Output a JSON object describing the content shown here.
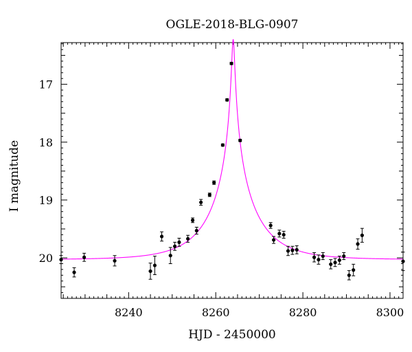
{
  "chart_data": {
    "type": "scatter",
    "title": "OGLE-2018-BLG-0907",
    "xlabel": "HJD - 2450000",
    "ylabel": "I magnitude",
    "xlim": [
      8224.5,
      8303
    ],
    "ylim": [
      20.7,
      16.28
    ],
    "y_inverted": true,
    "grid": false,
    "legend": "none",
    "x_ticks": [
      8240,
      8260,
      8280,
      8300
    ],
    "y_ticks": [
      17,
      18,
      19,
      20
    ],
    "colors": {
      "points": "#000000",
      "model": "#ff00ff"
    },
    "model": {
      "name": "",
      "t0": 8264.0,
      "u0": 0.03,
      "tE": 10.5,
      "baseline": 20.03
    },
    "series": [
      {
        "name": "",
        "points": [
          {
            "x": 8224.5,
            "y": 20.03,
            "err": 0.07
          },
          {
            "x": 8227.5,
            "y": 20.25,
            "err": 0.08
          },
          {
            "x": 8229.8,
            "y": 19.99,
            "err": 0.07
          },
          {
            "x": 8236.8,
            "y": 20.05,
            "err": 0.09
          },
          {
            "x": 8245.0,
            "y": 20.23,
            "err": 0.14
          },
          {
            "x": 8246.0,
            "y": 20.13,
            "err": 0.16
          },
          {
            "x": 8247.6,
            "y": 19.63,
            "err": 0.08
          },
          {
            "x": 8249.6,
            "y": 19.96,
            "err": 0.14
          },
          {
            "x": 8250.6,
            "y": 19.8,
            "err": 0.07
          },
          {
            "x": 8251.6,
            "y": 19.73,
            "err": 0.07
          },
          {
            "x": 8253.6,
            "y": 19.67,
            "err": 0.06
          },
          {
            "x": 8254.7,
            "y": 19.35,
            "err": 0.04
          },
          {
            "x": 8255.6,
            "y": 19.53,
            "err": 0.06
          },
          {
            "x": 8256.6,
            "y": 19.04,
            "err": 0.05
          },
          {
            "x": 8258.6,
            "y": 18.91,
            "err": 0.03
          },
          {
            "x": 8259.6,
            "y": 18.7,
            "err": 0.03
          },
          {
            "x": 8261.6,
            "y": 18.05,
            "err": 0.02
          },
          {
            "x": 8262.6,
            "y": 17.27,
            "err": 0.02
          },
          {
            "x": 8263.6,
            "y": 16.64,
            "err": 0.02
          },
          {
            "x": 8265.6,
            "y": 17.97,
            "err": 0.02
          },
          {
            "x": 8272.6,
            "y": 19.44,
            "err": 0.05
          },
          {
            "x": 8273.3,
            "y": 19.69,
            "err": 0.06
          },
          {
            "x": 8274.6,
            "y": 19.58,
            "err": 0.06
          },
          {
            "x": 8275.6,
            "y": 19.6,
            "err": 0.06
          },
          {
            "x": 8276.6,
            "y": 19.88,
            "err": 0.08
          },
          {
            "x": 8277.6,
            "y": 19.87,
            "err": 0.07
          },
          {
            "x": 8278.6,
            "y": 19.86,
            "err": 0.07
          },
          {
            "x": 8282.6,
            "y": 19.99,
            "err": 0.08
          },
          {
            "x": 8283.6,
            "y": 20.03,
            "err": 0.08
          },
          {
            "x": 8284.6,
            "y": 19.97,
            "err": 0.06
          },
          {
            "x": 8286.4,
            "y": 20.11,
            "err": 0.08
          },
          {
            "x": 8287.4,
            "y": 20.08,
            "err": 0.07
          },
          {
            "x": 8288.4,
            "y": 20.04,
            "err": 0.07
          },
          {
            "x": 8289.4,
            "y": 19.97,
            "err": 0.06
          },
          {
            "x": 8290.6,
            "y": 20.3,
            "err": 0.08
          },
          {
            "x": 8291.6,
            "y": 20.21,
            "err": 0.1
          },
          {
            "x": 8292.6,
            "y": 19.76,
            "err": 0.09
          },
          {
            "x": 8293.6,
            "y": 19.61,
            "err": 0.12
          },
          {
            "x": 8303.0,
            "y": 20.06,
            "err": 0.16
          }
        ]
      }
    ]
  }
}
